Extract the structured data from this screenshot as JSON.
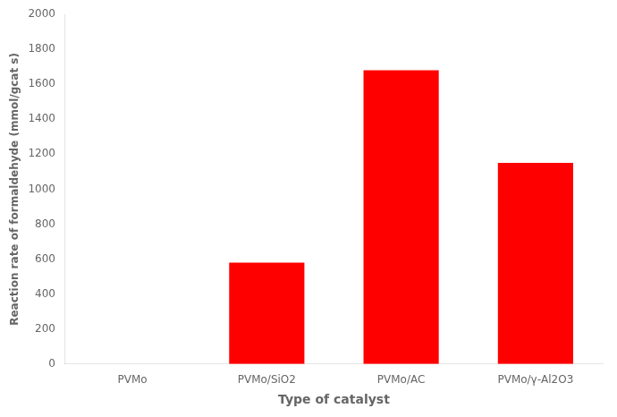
{
  "chart_data": {
    "type": "bar",
    "categories": [
      "PVMo",
      "PVMo/SiO2",
      "PVMo/AC",
      "PVMo/γ-Al2O3"
    ],
    "values": [
      0,
      580,
      1680,
      1150
    ],
    "color": "#FF0000",
    "xlabel": "Type of catalyst",
    "ylabel": "Reaction rate of formaldehyde (mmol/gcat s)",
    "ylim": [
      0,
      2000
    ],
    "yticks": [
      0,
      200,
      400,
      600,
      800,
      1000,
      1200,
      1400,
      1600,
      1800,
      2000
    ],
    "grid": false
  }
}
